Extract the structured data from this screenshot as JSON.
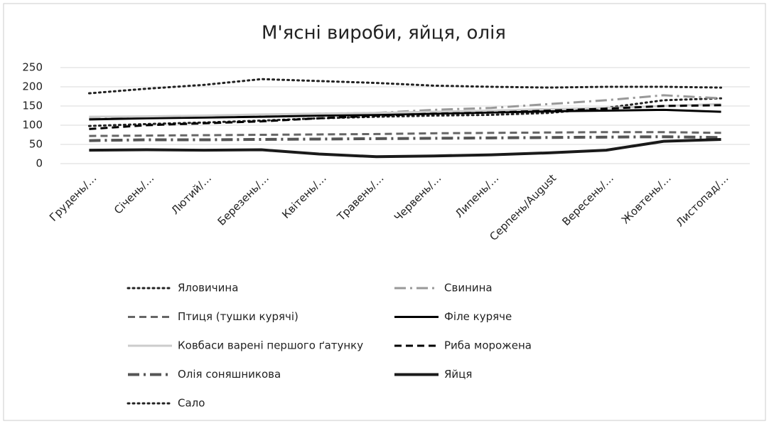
{
  "chart_data": {
    "type": "line",
    "title": "М'ясні вироби, яйця, олія",
    "categories": [
      "Грудень/…",
      "Січень/…",
      "Лютий/…",
      "Березень/…",
      "Квітень/…",
      "Травень/…",
      "Червень/…",
      "Липень/…",
      "Серпень/August",
      "Вересень/…",
      "Жовтень/…",
      "Листопад/…"
    ],
    "series": [
      {
        "name": "Яловичина",
        "color": "#222222",
        "dash": "dotted",
        "values": [
          98,
          103,
          107,
          112,
          118,
          122,
          125,
          127,
          132,
          145,
          165,
          170
        ]
      },
      {
        "name": "Свинина",
        "color": "#999999",
        "dash": "dashdot",
        "values": [
          120,
          122,
          124,
          127,
          130,
          132,
          140,
          145,
          155,
          165,
          178,
          170
        ]
      },
      {
        "name": "Птиця (тушки курячі)",
        "color": "#666666",
        "dash": "dashed",
        "values": [
          72,
          73,
          74,
          75,
          76,
          77,
          79,
          80,
          81,
          82,
          82,
          80
        ]
      },
      {
        "name": "Філе куряче",
        "color": "#000000",
        "dash": "solid",
        "values": [
          115,
          118,
          120,
          122,
          125,
          127,
          130,
          133,
          136,
          138,
          140,
          135
        ]
      },
      {
        "name": "Ковбаси варені першого ґатунку",
        "color": "#cccccc",
        "dash": "solid",
        "values": [
          122,
          123,
          125,
          128,
          130,
          132,
          135,
          138,
          142,
          145,
          150,
          155
        ]
      },
      {
        "name": "Риба морожена",
        "color": "#000000",
        "dash": "dashed",
        "values": [
          90,
          100,
          105,
          110,
          118,
          125,
          130,
          133,
          138,
          143,
          150,
          152
        ]
      },
      {
        "name": "Олія соняшникова",
        "color": "#555555",
        "dash": "dashdot",
        "values": [
          60,
          62,
          62,
          63,
          64,
          65,
          66,
          67,
          68,
          69,
          70,
          68
        ]
      },
      {
        "name": "Яйця",
        "color": "#1a1a1a",
        "dash": "solid",
        "values": [
          35,
          36,
          35,
          36,
          25,
          18,
          20,
          23,
          28,
          35,
          58,
          63
        ]
      },
      {
        "name": "Сало",
        "color": "#222222",
        "dash": "dotted",
        "values": [
          183,
          195,
          205,
          220,
          215,
          210,
          203,
          200,
          198,
          200,
          200,
          198
        ]
      }
    ],
    "ylim": [
      0,
      250
    ],
    "yticks": [
      0,
      50,
      100,
      150,
      200,
      250
    ],
    "grid": true
  }
}
